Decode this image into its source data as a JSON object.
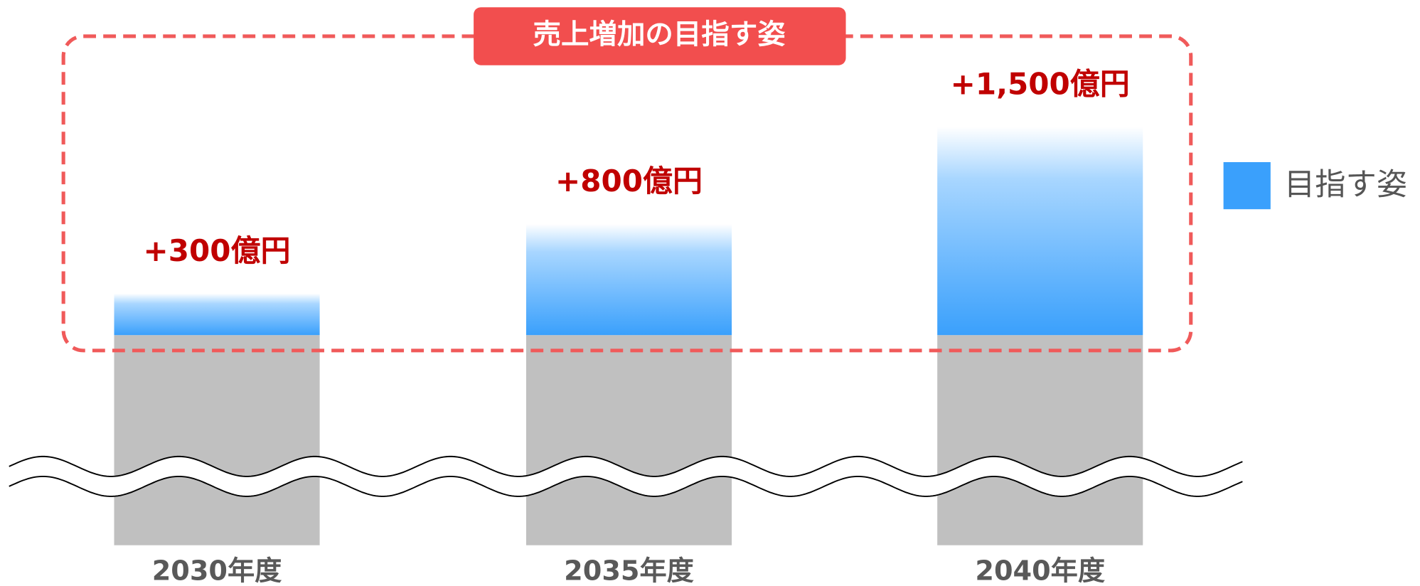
{
  "chart_data": {
    "type": "bar",
    "title": "売上増加の目指す姿",
    "categories": [
      "2030年度",
      "2035年度",
      "2040年度"
    ],
    "series": [
      {
        "name": "目指す姿",
        "color": "#3aa0fc",
        "values": [
          300,
          800,
          1500
        ],
        "value_labels": [
          "+300億円",
          "+800億円",
          "+1,500億円"
        ]
      }
    ]
  }
}
